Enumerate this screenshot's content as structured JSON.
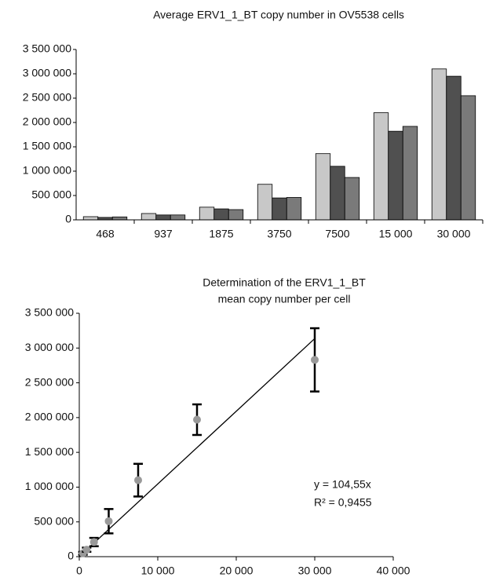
{
  "chart_data": [
    {
      "type": "bar",
      "title": "Average ERV1_1_BT copy number in OV5538 cells",
      "categories": [
        "468",
        "937",
        "1875",
        "3750",
        "7500",
        "15 000",
        "30 000"
      ],
      "series": [
        {
          "color": "#c8c8c8",
          "values": [
            65000,
            130000,
            260000,
            730000,
            1360000,
            2200000,
            3100000
          ]
        },
        {
          "color": "#505050",
          "values": [
            50000,
            100000,
            225000,
            450000,
            1100000,
            1820000,
            2950000
          ]
        },
        {
          "color": "#7a7a7a",
          "values": [
            60000,
            100000,
            210000,
            460000,
            870000,
            1920000,
            2550000
          ]
        }
      ],
      "ylim": [
        0,
        3500000
      ],
      "yticks": [
        0,
        {
          "value": 500000,
          "label": "500 000"
        },
        {
          "value": 1000000,
          "label": "1 000 000"
        },
        {
          "value": 1500000,
          "label": "1 500 000"
        },
        {
          "value": 2000000,
          "label": "2 000 000"
        },
        {
          "value": 2500000,
          "label": "2 500 000"
        },
        {
          "value": 3000000,
          "label": "3 000 000"
        },
        {
          "value": 3500000,
          "label": "3 500 000"
        }
      ],
      "grid": false
    },
    {
      "type": "scatter",
      "title": [
        "Determination of the ERV1_1_BT",
        "mean copy number per cell"
      ],
      "x": [
        468,
        937,
        1875,
        3750,
        7500,
        15000,
        30000
      ],
      "series": [
        {
          "color": "#999999",
          "values": [
            48000,
            100000,
            210000,
            510000,
            1100000,
            1970000,
            2830000
          ],
          "errors": [
            20000,
            30000,
            60000,
            175000,
            235000,
            220000,
            455000
          ]
        }
      ],
      "trendline": {
        "slope": 104.55,
        "x": [
          0,
          30000
        ],
        "label": "y = 104,55x",
        "r2_label": "R² = 0,9455"
      },
      "xlim": [
        0,
        40000
      ],
      "xticks": [
        0,
        {
          "value": 10000,
          "label": "10 000"
        },
        {
          "value": 20000,
          "label": "20 000"
        },
        {
          "value": 30000,
          "label": "30 000"
        },
        {
          "value": 40000,
          "label": "40 000"
        }
      ],
      "ylim": [
        0,
        3500000
      ],
      "yticks": [
        0,
        {
          "value": 500000,
          "label": "500 000"
        },
        {
          "value": 1000000,
          "label": "1 000 000"
        },
        {
          "value": 1500000,
          "label": "1 500 000"
        },
        {
          "value": 2000000,
          "label": "2 000 000"
        },
        {
          "value": 2500000,
          "label": "2 500 000"
        },
        {
          "value": 3000000,
          "label": "3 000 000"
        },
        {
          "value": 3500000,
          "label": "3 500 000"
        }
      ],
      "grid": false
    }
  ]
}
